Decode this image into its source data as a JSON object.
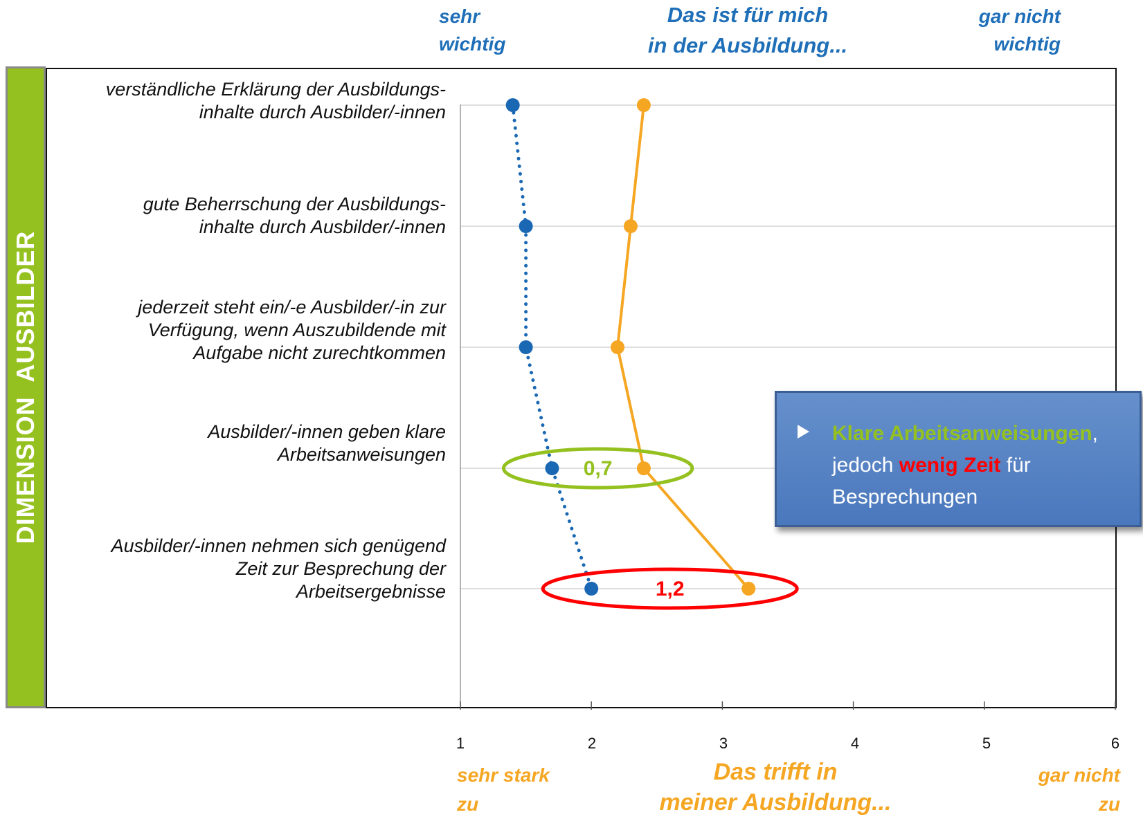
{
  "header": {
    "left_line1": "sehr",
    "left_line2": "wichtig",
    "center_line1": "Das ist für mich",
    "center_line2": "in der Ausbildung...",
    "right_line1": "gar nicht",
    "right_line2": "wichtig"
  },
  "sidebar": {
    "label": "DIMENSION  AUSBILDER"
  },
  "footer": {
    "left_line1": "sehr stark",
    "left_line2": "zu",
    "center_line1": "Das trifft  in",
    "center_line2": "meiner Ausbildung...",
    "right_line1": "gar nicht",
    "right_line2": "zu"
  },
  "callout": {
    "part1": "Klare Arbeitsanweisungen",
    "part2": ",",
    "part3": "jedoch ",
    "part4": "wenig Zeit",
    "part5": " für",
    "part6": "Besprechungen"
  },
  "chart_data": {
    "type": "line",
    "orientation": "horizontal",
    "categories": [
      "verständliche Erklärung der Ausbildungs-\ninhalte durch Ausbilder/-innen",
      "gute Beherrschung der Ausbildungs-\ninhalte durch Ausbilder/-innen",
      "jederzeit steht ein/-e Ausbilder/-in zur\nVerfügung, wenn Auszubildende mit\nAufgabe nicht zurechtkommen",
      "Ausbilder/-innen geben klare\nArbeitsanweisungen",
      "Ausbilder/-innen nehmen sich genügend\nZeit zur Besprechung der\nArbeitsergebnisse"
    ],
    "series": [
      {
        "values": [
          1.4,
          1.5,
          1.5,
          1.7,
          2.0
        ],
        "color": "#1a68b3",
        "line_style": "dotted"
      },
      {
        "values": [
          2.4,
          2.3,
          2.2,
          2.4,
          3.2
        ],
        "color": "#f5a623",
        "line_style": "solid"
      }
    ],
    "xlim": [
      1,
      6
    ],
    "xticks": [
      "1",
      "2",
      "3",
      "4",
      "5",
      "6"
    ],
    "grid": true,
    "annotations": [
      {
        "text": "0,7",
        "category_index": 3,
        "color": "#94c11f"
      },
      {
        "text": "1,2",
        "category_index": 4,
        "color": "#ff0000"
      }
    ]
  }
}
